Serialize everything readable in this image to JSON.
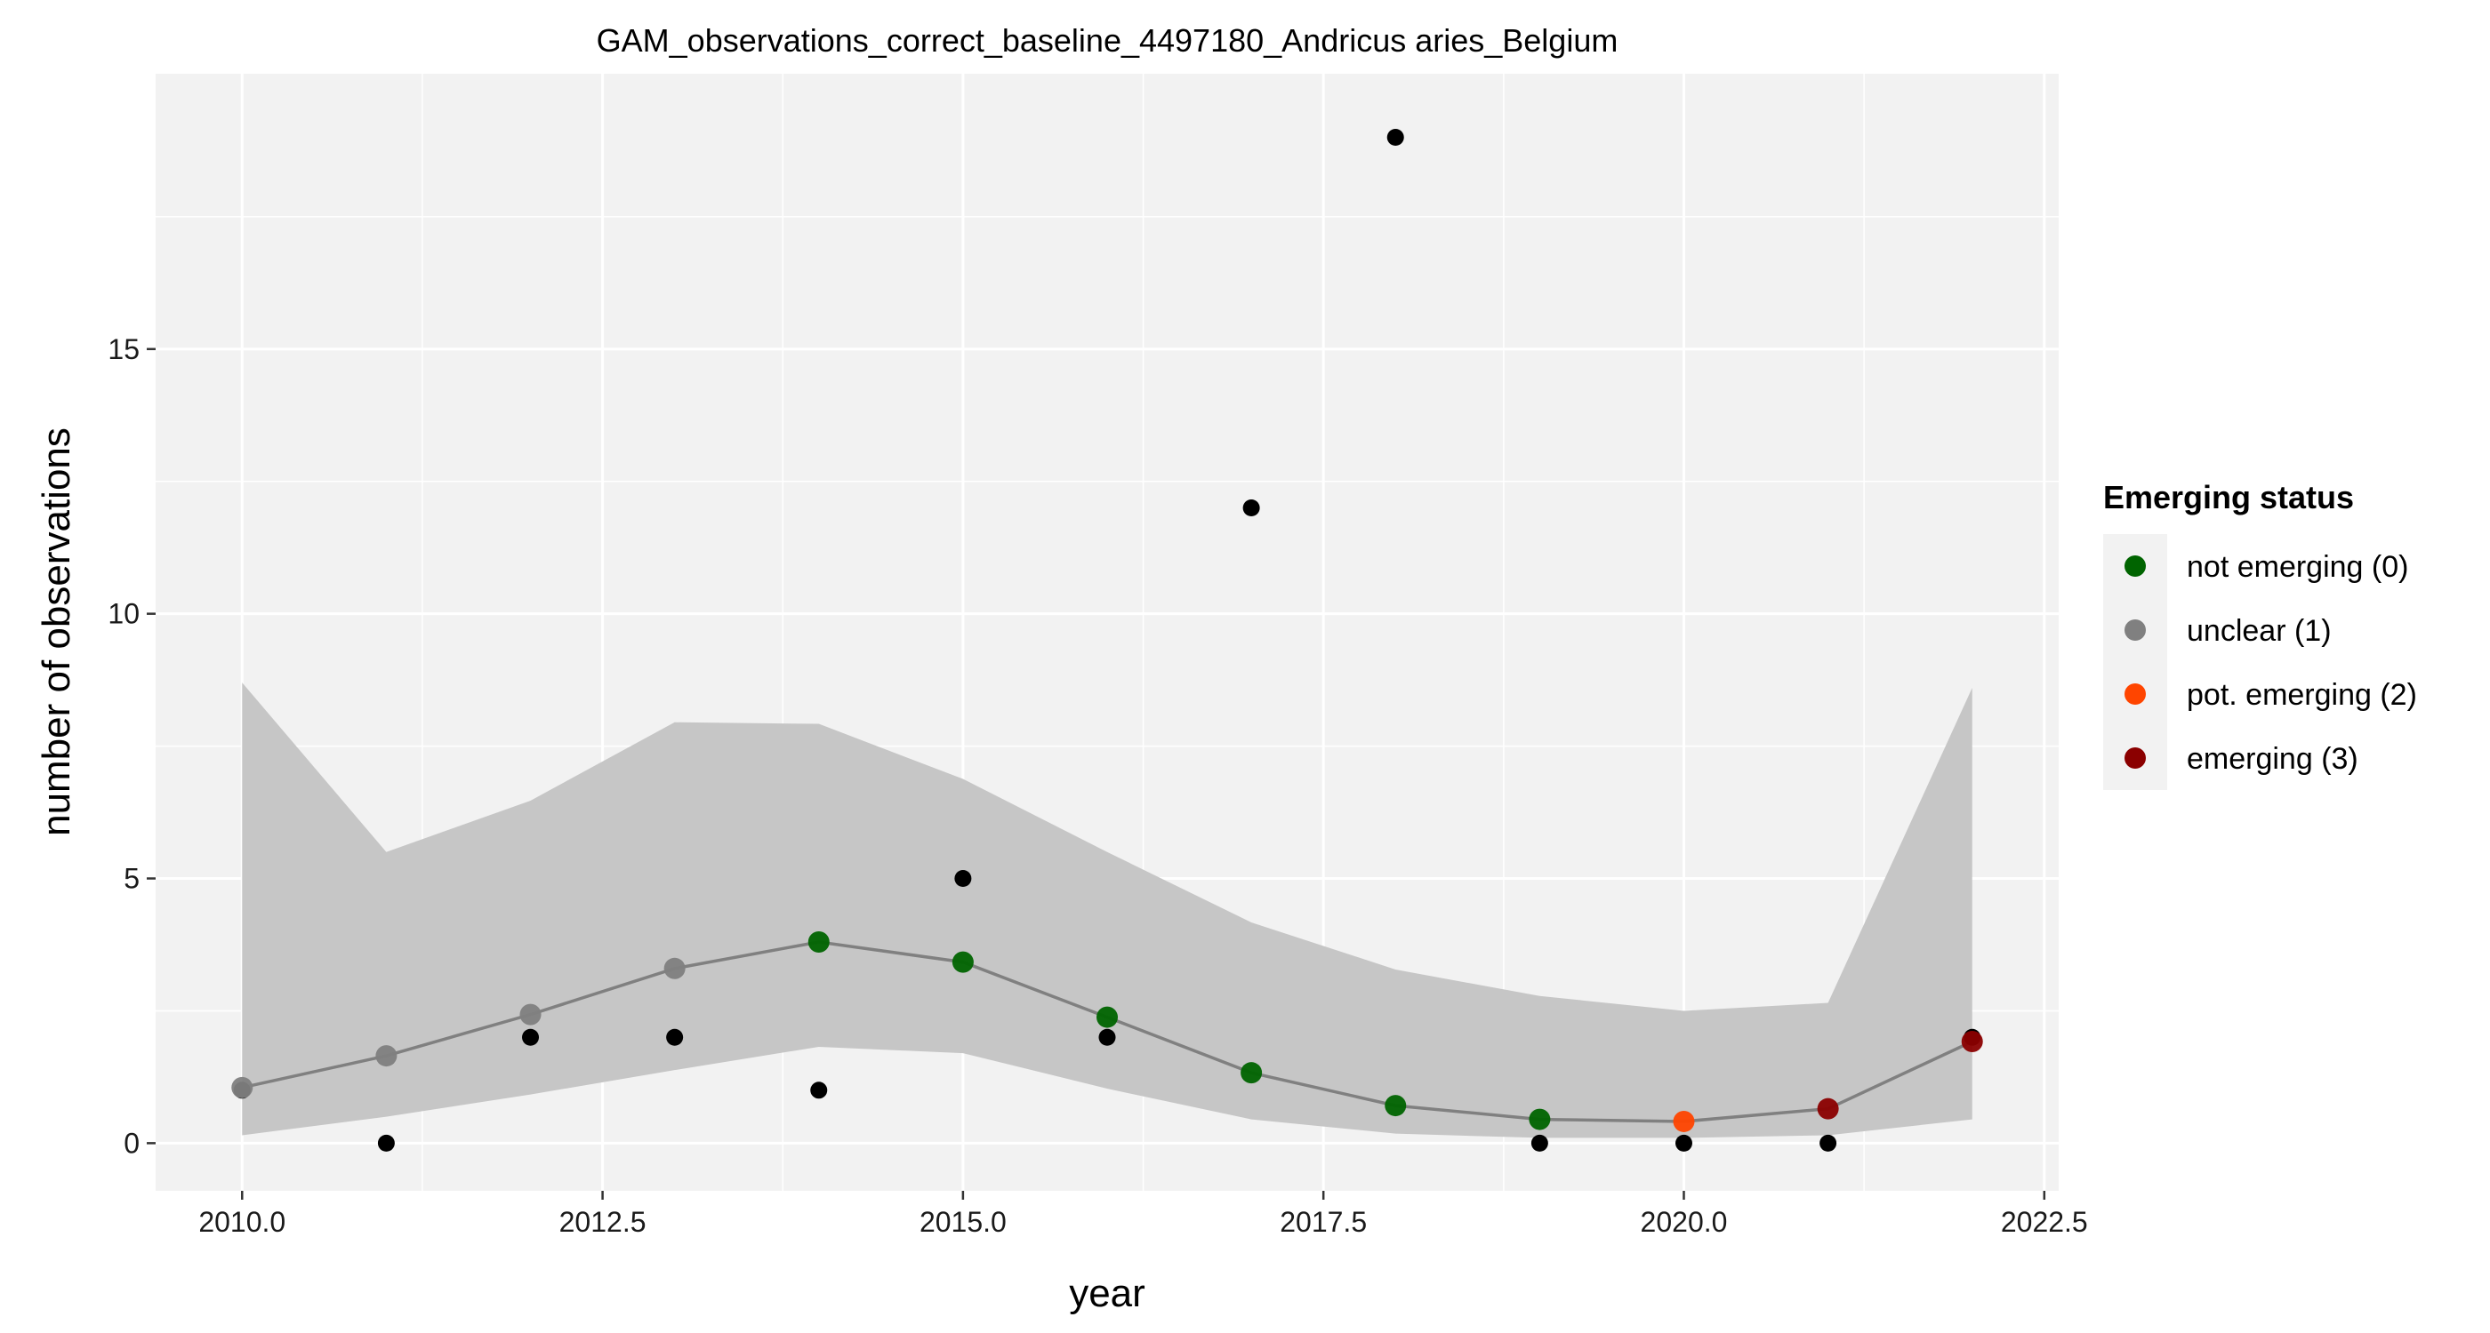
{
  "chart_data": {
    "type": "line",
    "title": "GAM_observations_correct_baseline_4497180_Andricus aries_Belgium",
    "xlabel": "year",
    "ylabel": "number of observations",
    "xlim": [
      2009.4,
      2022.6
    ],
    "ylim": [
      -0.9,
      20.2
    ],
    "x_ticks": [
      2010.0,
      2012.5,
      2015.0,
      2017.5,
      2020.0,
      2022.5
    ],
    "x_tick_labels": [
      "2010.0",
      "2012.5",
      "2015.0",
      "2017.5",
      "2020.0",
      "2022.5"
    ],
    "y_ticks": [
      0,
      5,
      10,
      15
    ],
    "y_tick_labels": [
      "0",
      "5",
      "10",
      "15"
    ],
    "grid": true,
    "legend_position": "right",
    "observations": {
      "x": [
        2010,
        2011,
        2012,
        2013,
        2014,
        2015,
        2016,
        2017,
        2018,
        2019,
        2020,
        2021,
        2022
      ],
      "y": [
        1,
        0,
        2,
        2,
        1,
        5,
        2,
        12,
        19,
        0,
        0,
        0,
        2
      ]
    },
    "fit": {
      "x": [
        2010,
        2011,
        2012,
        2013,
        2014,
        2015,
        2016,
        2017,
        2018,
        2019,
        2020,
        2021,
        2022
      ],
      "y": [
        1.05,
        1.65,
        2.43,
        3.3,
        3.8,
        3.42,
        2.38,
        1.33,
        0.71,
        0.45,
        0.41,
        0.65,
        1.92
      ],
      "lower": [
        0.15,
        0.5,
        0.92,
        1.38,
        1.82,
        1.7,
        1.03,
        0.45,
        0.18,
        0.1,
        0.1,
        0.15,
        0.45
      ],
      "upper": [
        8.7,
        5.5,
        6.47,
        7.95,
        7.92,
        6.88,
        5.5,
        4.17,
        3.28,
        2.78,
        2.5,
        2.65,
        8.6
      ],
      "status": [
        1,
        1,
        1,
        1,
        0,
        0,
        0,
        0,
        0,
        0,
        2,
        3,
        3
      ]
    },
    "legend": {
      "title": "Emerging status",
      "items": [
        {
          "label": "not emerging (0)",
          "color": "#006400"
        },
        {
          "label": "unclear (1)",
          "color": "#808080"
        },
        {
          "label": "pot. emerging (2)",
          "color": "#FF4500"
        },
        {
          "label": "emerging (3)",
          "color": "#8B0000"
        }
      ]
    },
    "colors": {
      "panel_background": "#F2F2F2",
      "gridline": "#FFFFFF",
      "ribbon": "#C6C6C6",
      "fit_line": "#808080",
      "observation_point": "#000000"
    }
  }
}
